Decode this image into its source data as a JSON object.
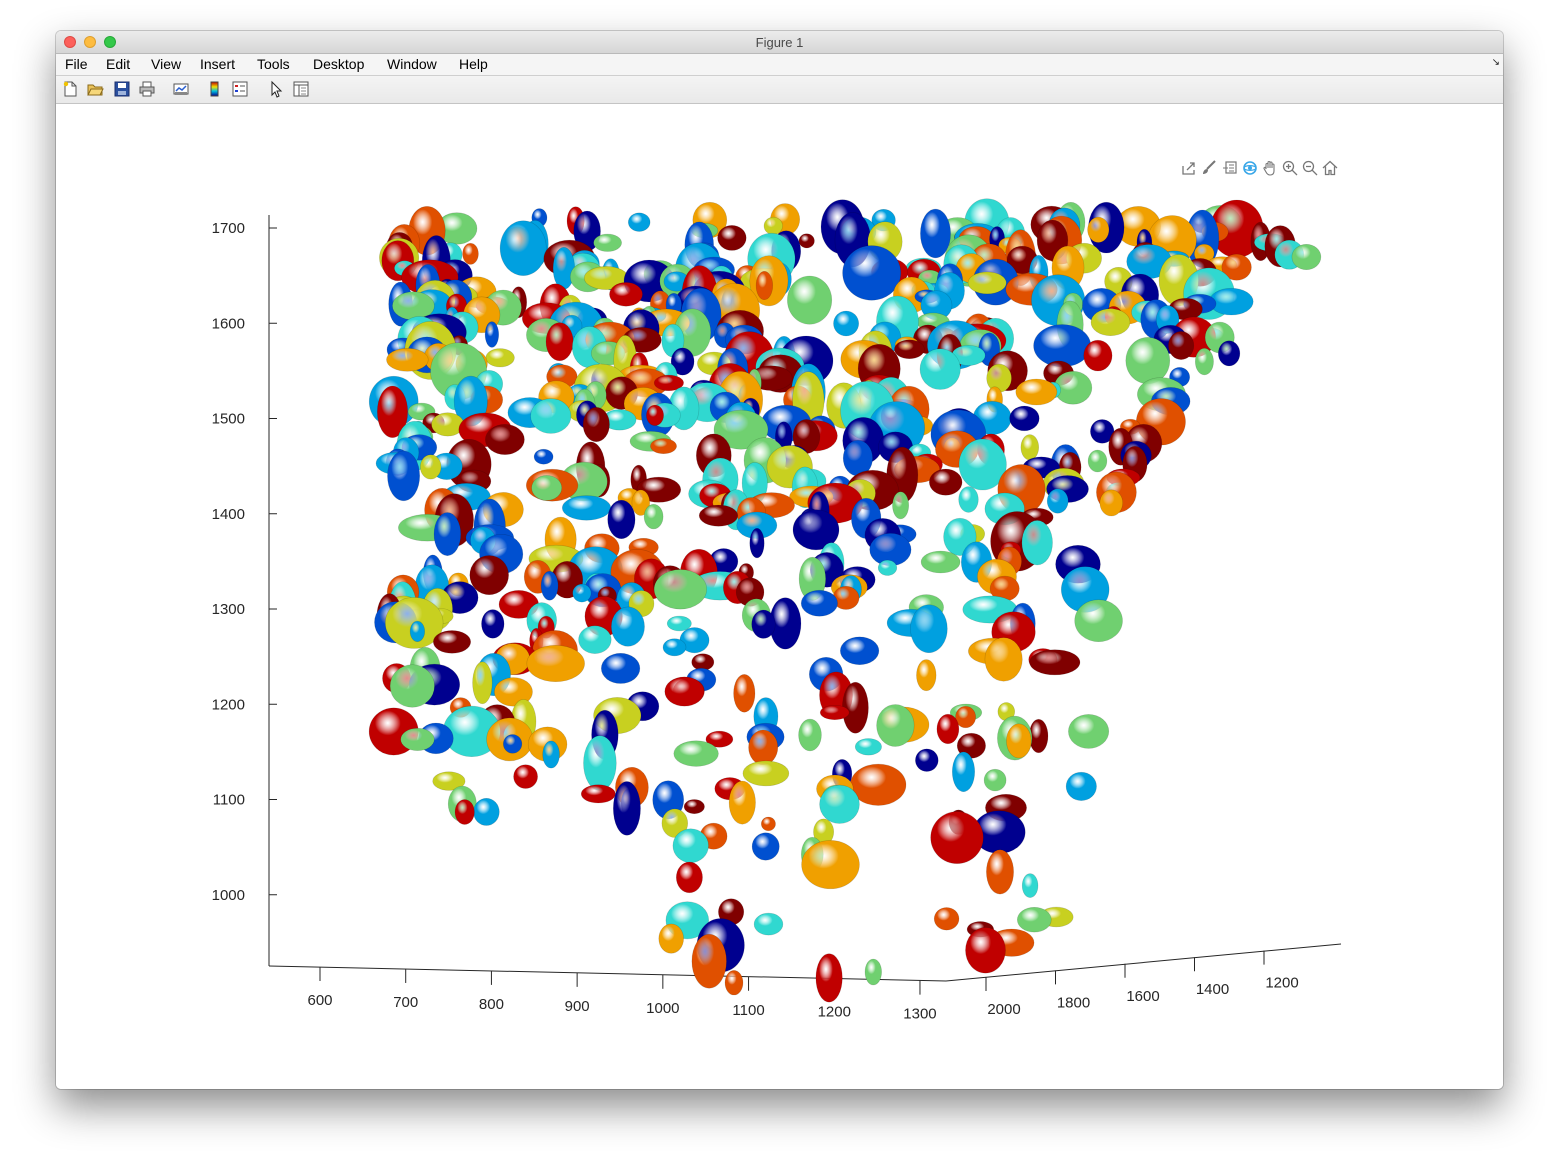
{
  "window": {
    "title": "Figure 1"
  },
  "menubar": {
    "items": [
      {
        "label": "File",
        "name": "menu-file"
      },
      {
        "label": "Edit",
        "name": "menu-edit"
      },
      {
        "label": "View",
        "name": "menu-view"
      },
      {
        "label": "Insert",
        "name": "menu-insert"
      },
      {
        "label": "Tools",
        "name": "menu-tools"
      },
      {
        "label": "Desktop",
        "name": "menu-desktop"
      },
      {
        "label": "Window",
        "name": "menu-window"
      },
      {
        "label": "Help",
        "name": "menu-help"
      }
    ]
  },
  "toolbar": {
    "buttons": [
      {
        "icon": "new-figure-icon"
      },
      {
        "icon": "open-folder-icon"
      },
      {
        "icon": "save-icon"
      },
      {
        "icon": "print-icon"
      },
      {
        "icon": "link-plot-icon"
      },
      {
        "icon": "insert-colorbar-icon"
      },
      {
        "icon": "insert-legend-icon"
      },
      {
        "icon": "edit-plot-cursor-icon"
      },
      {
        "icon": "property-inspector-icon"
      }
    ]
  },
  "axes_toolbar": {
    "buttons": [
      {
        "icon": "export-icon"
      },
      {
        "icon": "brush-icon"
      },
      {
        "icon": "data-tips-icon"
      },
      {
        "icon": "rotate-3d-icon"
      },
      {
        "icon": "pan-icon"
      },
      {
        "icon": "zoom-in-icon"
      },
      {
        "icon": "zoom-out-icon"
      },
      {
        "icon": "restore-view-icon"
      }
    ]
  },
  "chart_data": {
    "type": "scatter",
    "title": "",
    "xlabel": "",
    "ylabel": "",
    "zlabel": "",
    "x_ticks": [
      "600",
      "700",
      "800",
      "900",
      "1000",
      "1100",
      "1200",
      "1300"
    ],
    "y_ticks": [
      "2000",
      "1800",
      "1600",
      "1400",
      "1200"
    ],
    "z_ticks": [
      "1700",
      "1600",
      "1500",
      "1400",
      "1300",
      "1200",
      "1100",
      "1000"
    ],
    "xlim": [
      540,
      1320
    ],
    "ylim": [
      1200,
      2050
    ],
    "zlim": [
      925,
      1715
    ],
    "grid": false,
    "colormap": "jet",
    "colormap_colors": [
      "#00008f",
      "#0050d0",
      "#00a0e0",
      "#30d8d0",
      "#70d070",
      "#c8d020",
      "#f0a000",
      "#e05000",
      "#c00000",
      "#800000"
    ]
  }
}
